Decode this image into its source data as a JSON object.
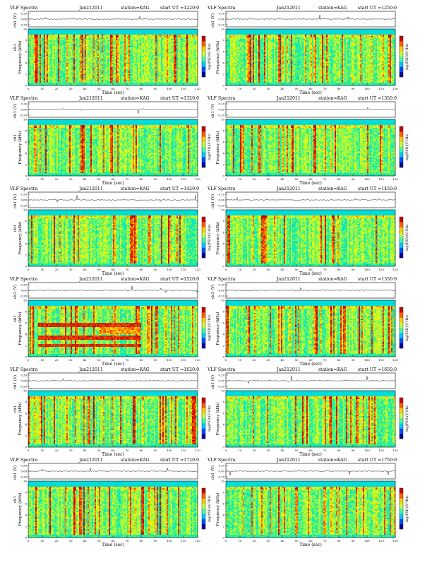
{
  "page": {
    "header_left": "VLF Spectra",
    "header_date": "Jan212011",
    "header_station": "station=KAG",
    "start_label": "start  UT =",
    "wave_ylabel": "ch1 (V)",
    "spec_ylabel": "Frequency  (kHz)",
    "spec_ylabel_ch": "ch1",
    "cbar_label": "log(PSD)(V²/Hz)",
    "xlabel": "Time  (sec)"
  },
  "chart_data": {
    "type": "heatmap",
    "description_free": true,
    "x_ticks": [
      "0",
      "10",
      "20",
      "30",
      "40",
      "50",
      "60",
      "70",
      "80",
      "90",
      "100",
      "110",
      "120"
    ],
    "y_ticks": [
      "0",
      "2",
      "4",
      "6",
      "8",
      "10"
    ],
    "wave_ticks": [
      "0.20",
      "0.00",
      "-0.20"
    ],
    "xlim": [
      0,
      120
    ],
    "ylim": [
      0,
      10
    ],
    "colorbar_colors": [
      "#0000a0",
      "#0050ff",
      "#00c8ff",
      "#40ffa0",
      "#c8ff40",
      "#ffd000",
      "#ff6000",
      "#c80000"
    ],
    "panels": [
      {
        "start": "1220:0",
        "xlabel": "Time  (sec)",
        "burst": false
      },
      {
        "start": "1250:0",
        "xlabel": "Time  (sec)",
        "burst": false
      },
      {
        "start": "1320:0",
        "xlabel": "Time  (sec)",
        "burst": false
      },
      {
        "start": "1350:0",
        "xlabel": "Time  (sec)",
        "burst": false
      },
      {
        "start": "1420:0",
        "xlabel": "Time  (sec)",
        "burst": false
      },
      {
        "start": "1450:0",
        "xlabel": "Time  (sec)",
        "burst": false
      },
      {
        "start": "1520:0",
        "xlabel": "Time  (sec)",
        "burst": true
      },
      {
        "start": "1550:0",
        "xlabel": "Time  (sec)",
        "burst": false
      },
      {
        "start": "1620:0",
        "xlabel": "Time  (sec)",
        "burst": false
      },
      {
        "start": "1650:0",
        "xlabel": "Time  (sec)",
        "burst": false
      },
      {
        "start": "1720:0",
        "xlabel": "Time  (sec)",
        "burst": false
      },
      {
        "start": "1750:0",
        "xlabel": "Time  (sec)",
        "burst": false
      }
    ]
  }
}
